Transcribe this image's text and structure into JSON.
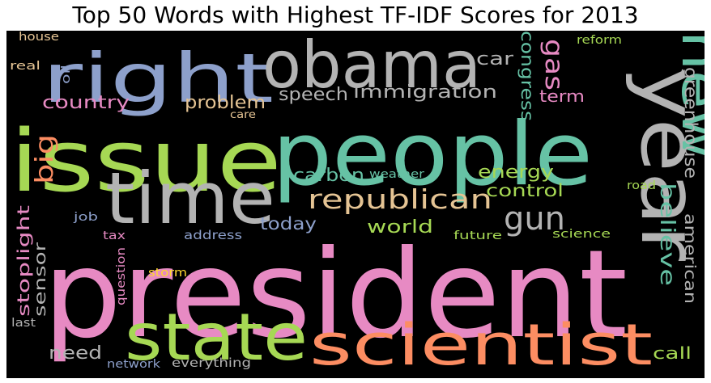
{
  "title": "Top 50 Words with Highest TF-IDF Scores for 2013",
  "palette": {
    "pink": "#e78ac3",
    "green": "#a6d854",
    "teal": "#66c2a5",
    "gray": "#b3b3b3",
    "orange": "#fc8d62",
    "blue": "#8da0cb",
    "yellow": "#ffd92f",
    "tan": "#e5c494"
  },
  "words": {
    "president": "president",
    "people": "people",
    "issue": "issue",
    "right": "right",
    "obama": "obama",
    "year": "year",
    "new": "new",
    "time": "time",
    "state": "state",
    "scientist": "scientist",
    "republican": "republican",
    "gun": "gun",
    "believe": "believe",
    "big": "big",
    "gas": "gas",
    "car": "car",
    "congress": "congress",
    "greenhouse": "greenhouse",
    "immigration": "immigration",
    "speech": "speech",
    "country": "country",
    "problem": "problem",
    "term": "term",
    "energy": "energy",
    "carbon": "carbon",
    "control": "control",
    "world": "world",
    "today": "today",
    "american": "american",
    "stoplight": "stoplight",
    "sensor": "sensor",
    "need": "need",
    "call": "call",
    "reform": "reform",
    "house": "house",
    "real": "real",
    "oil": "oil",
    "care": "care",
    "weather": "weather",
    "road": "road",
    "job": "job",
    "tax": "tax",
    "address": "address",
    "future": "future",
    "science": "science",
    "storm": "storm",
    "question": "question",
    "last": "last",
    "network": "network",
    "everything": "everything"
  }
}
